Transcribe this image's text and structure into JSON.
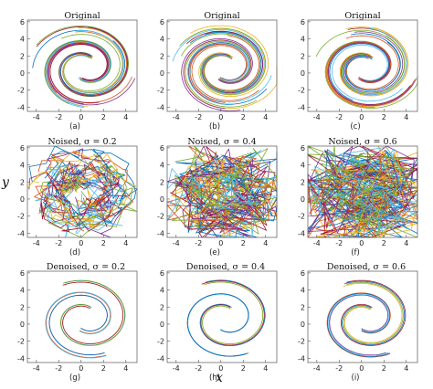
{
  "figure": {
    "xlabel": "x",
    "ylabel": "y"
  },
  "palette": [
    "#0072bd",
    "#d95319",
    "#edb120",
    "#7e2f8e",
    "#77ac30",
    "#4dbeee",
    "#a2142f"
  ],
  "chart_data": [
    {
      "type": "line",
      "title": "Original",
      "sublabel": "(a)",
      "noise_sigma": 0,
      "xlim": [
        -4.8,
        5
      ],
      "ylim": [
        -4.5,
        6.2
      ],
      "xticks": [
        -4,
        -2,
        0,
        2,
        4
      ],
      "yticks": [
        -4,
        -2,
        0,
        2,
        4,
        6
      ],
      "x_tick_labels": [
        "-4",
        "-2",
        "0",
        "2",
        "4"
      ],
      "y_tick_labels": [
        "-4",
        "-2",
        "0",
        "2",
        "4",
        "6"
      ]
    },
    {
      "type": "line",
      "title": "Original",
      "sublabel": "(b)",
      "noise_sigma": 0,
      "xlim": [
        -4.8,
        5
      ],
      "ylim": [
        -4.5,
        6.2
      ],
      "xticks": [
        -4,
        -2,
        0,
        2,
        4
      ],
      "yticks": [
        -4,
        -2,
        0,
        2,
        4,
        6
      ],
      "x_tick_labels": [
        "-4",
        "-2",
        "0",
        "2",
        "4"
      ],
      "y_tick_labels": [
        "-4",
        "-2",
        "0",
        "2",
        "4",
        "6"
      ]
    },
    {
      "type": "line",
      "title": "Original",
      "sublabel": "(c)",
      "noise_sigma": 0,
      "xlim": [
        -4.8,
        5
      ],
      "ylim": [
        -4.5,
        6.2
      ],
      "xticks": [
        -4,
        -2,
        0,
        2,
        4
      ],
      "yticks": [
        -4,
        -2,
        0,
        2,
        4,
        6
      ],
      "x_tick_labels": [
        "-4",
        "-2",
        "0",
        "2",
        "4"
      ],
      "y_tick_labels": [
        "-4",
        "-2",
        "0",
        "2",
        "4",
        "6"
      ]
    },
    {
      "type": "line",
      "title": "Noised, σ = 0.2",
      "sublabel": "(d)",
      "noise_sigma": 0.2,
      "xlim": [
        -4.8,
        5
      ],
      "ylim": [
        -4.5,
        6.2
      ],
      "xticks": [
        -4,
        -2,
        0,
        2,
        4
      ],
      "yticks": [
        -4,
        -2,
        0,
        2,
        4,
        6
      ],
      "x_tick_labels": [
        "-4",
        "-2",
        "0",
        "2",
        "4"
      ],
      "y_tick_labels": [
        "-4",
        "-2",
        "0",
        "2",
        "4",
        "6"
      ]
    },
    {
      "type": "line",
      "title": "Noised, σ = 0.4",
      "sublabel": "(e)",
      "noise_sigma": 0.4,
      "xlim": [
        -4.8,
        5
      ],
      "ylim": [
        -4.5,
        6.2
      ],
      "xticks": [
        -4,
        -2,
        0,
        2,
        4
      ],
      "yticks": [
        -4,
        -2,
        0,
        2,
        4,
        6
      ],
      "x_tick_labels": [
        "-4",
        "-2",
        "0",
        "2",
        "4"
      ],
      "y_tick_labels": [
        "-4",
        "-2",
        "0",
        "2",
        "4",
        "6"
      ]
    },
    {
      "type": "line",
      "title": "Noised, σ = 0.6",
      "sublabel": "(f)",
      "noise_sigma": 0.6,
      "xlim": [
        -4.8,
        5
      ],
      "ylim": [
        -4.5,
        6.2
      ],
      "xticks": [
        -4,
        -2,
        0,
        2,
        4
      ],
      "yticks": [
        -4,
        -2,
        0,
        2,
        4,
        6
      ],
      "x_tick_labels": [
        "-4",
        "-2",
        "0",
        "2",
        "4"
      ],
      "y_tick_labels": [
        "-4",
        "-2",
        "0",
        "2",
        "4",
        "6"
      ]
    },
    {
      "type": "line",
      "title": "Denoised, σ = 0.2",
      "sublabel": "(g)",
      "noise_sigma": 0,
      "xlim": [
        -4.8,
        5
      ],
      "ylim": [
        -4.5,
        6.2
      ],
      "xticks": [
        -4,
        -2,
        0,
        2,
        4
      ],
      "yticks": [
        -4,
        -2,
        0,
        2,
        4,
        6
      ],
      "x_tick_labels": [
        "-4",
        "-2",
        "0",
        "2",
        "4"
      ],
      "y_tick_labels": [
        "-4",
        "-2",
        "0",
        "2",
        "4",
        "6"
      ]
    },
    {
      "type": "line",
      "title": "Denoised, σ = 0.4",
      "sublabel": "(h)",
      "noise_sigma": 0,
      "xlim": [
        -4.8,
        5
      ],
      "ylim": [
        -4.5,
        6.2
      ],
      "xticks": [
        -4,
        -2,
        0,
        2,
        4
      ],
      "yticks": [
        -4,
        -2,
        0,
        2,
        4,
        6
      ],
      "x_tick_labels": [
        "-4",
        "-2",
        "0",
        "2",
        "4"
      ],
      "y_tick_labels": [
        "-4",
        "-2",
        "0",
        "2",
        "4",
        "6"
      ]
    },
    {
      "type": "line",
      "title": "Denoised, σ = 0.6",
      "sublabel": "(i)",
      "noise_sigma": 0,
      "xlim": [
        -4.8,
        5
      ],
      "ylim": [
        -4.5,
        6.2
      ],
      "xticks": [
        -4,
        -2,
        0,
        2,
        4
      ],
      "yticks": [
        -4,
        -2,
        0,
        2,
        4,
        6
      ],
      "x_tick_labels": [
        "-4",
        "-2",
        "0",
        "2",
        "4"
      ],
      "y_tick_labels": [
        "-4",
        "-2",
        "0",
        "2",
        "4",
        "6"
      ]
    }
  ]
}
